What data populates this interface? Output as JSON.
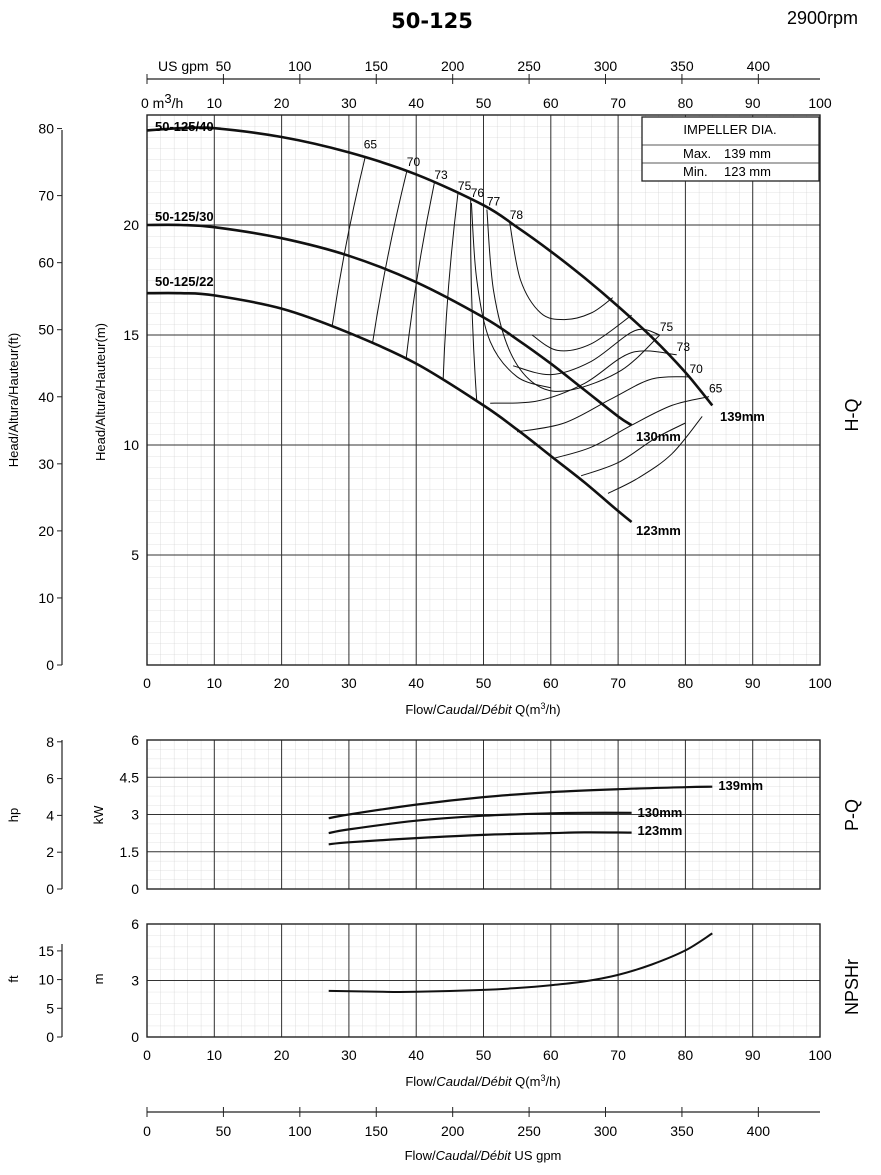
{
  "header": {
    "title": "50-125",
    "speed": "2900rpm"
  },
  "impeller_box": {
    "title": "IMPELLER DIA.",
    "max_label": "Max.",
    "max_value": "139  mm",
    "min_label": "Min.",
    "min_value": "123  mm"
  },
  "axes_text": {
    "us_gpm_top": "US gpm",
    "m3h_top_prefix": "0  m",
    "m3h_top_sup": "3",
    "m3h_top_suffix": "/h",
    "head_ft": "Head/Altura/Hauteur(ft)",
    "head_m": "Head/Altura/Hauteur(m)",
    "hq_side": "H-Q",
    "flow_label_prefix": "Flow/",
    "flow_label_italic": "Caudal/Débit",
    "flow_label_suffix": " Q(m",
    "flow_label_sup": "3",
    "flow_label_end": "/h)",
    "hp": "hp",
    "kw": "kW",
    "pq_side": "P-Q",
    "ft": "ft",
    "m": "m",
    "npsh_side": "NPSHr",
    "flow_gpm_prefix": "Flow/",
    "flow_gpm_italic": "Caudal/Débit",
    "flow_gpm_suffix": "  US gpm"
  },
  "chart_data": [
    {
      "type": "line",
      "name": "H-Q",
      "x_range_m3h": [
        0,
        100
      ],
      "y_range_m": [
        0,
        25
      ],
      "y_range_ft": [
        0,
        82
      ],
      "x_ticks": [
        0,
        10,
        20,
        30,
        40,
        50,
        60,
        70,
        80,
        90,
        100
      ],
      "x_ticks_top": [
        10,
        20,
        30,
        40,
        50,
        60,
        70,
        80,
        90,
        100
      ],
      "gpm_ticks_top": [
        50,
        100,
        150,
        200,
        250,
        300,
        350,
        400
      ],
      "y_ticks_m": [
        5,
        10,
        15,
        20
      ],
      "y_ticks_ft": [
        0,
        10,
        20,
        30,
        40,
        50,
        60,
        70,
        80
      ],
      "grid": true,
      "series": [
        {
          "name": "139mm",
          "model": "50-125/40",
          "x": [
            0,
            5,
            10,
            20,
            30,
            40,
            50,
            55,
            60,
            65,
            70,
            75,
            80,
            84
          ],
          "y": [
            24.3,
            24.4,
            24.4,
            24.0,
            23.3,
            22.3,
            20.9,
            19.9,
            18.8,
            17.6,
            16.3,
            14.9,
            13.3,
            11.8
          ]
        },
        {
          "name": "130mm",
          "model": "50-125/30",
          "x": [
            0,
            5,
            10,
            20,
            30,
            40,
            50,
            55,
            60,
            65,
            70,
            72
          ],
          "y": [
            20.0,
            20.0,
            19.9,
            19.4,
            18.6,
            17.4,
            15.8,
            14.8,
            13.7,
            12.5,
            11.3,
            10.9
          ]
        },
        {
          "name": "123mm",
          "model": "50-125/22",
          "x": [
            0,
            5,
            10,
            20,
            30,
            40,
            50,
            55,
            60,
            65,
            70,
            72
          ],
          "y": [
            16.9,
            16.9,
            16.8,
            16.2,
            15.1,
            13.7,
            11.8,
            10.7,
            9.5,
            8.3,
            7.0,
            6.5
          ]
        }
      ],
      "efficiency_labels": [
        {
          "label": "65",
          "x": 32.2,
          "y": 23.3
        },
        {
          "label": "70",
          "x": 38.6,
          "y": 22.5
        },
        {
          "label": "73",
          "x": 42.7,
          "y": 21.9
        },
        {
          "label": "75",
          "x": 46.2,
          "y": 21.4
        },
        {
          "label": "76",
          "x": 48.1,
          "y": 21.1
        },
        {
          "label": "77",
          "x": 50.5,
          "y": 20.7
        },
        {
          "label": "78",
          "x": 53.9,
          "y": 20.1
        },
        {
          "label": "75",
          "x": 76.2,
          "y": 15.0
        },
        {
          "label": "73",
          "x": 78.7,
          "y": 14.1
        },
        {
          "label": "70",
          "x": 80.6,
          "y": 13.1
        },
        {
          "label": "65",
          "x": 83.5,
          "y": 12.2
        }
      ]
    },
    {
      "type": "line",
      "name": "P-Q",
      "x_range_m3h": [
        0,
        100
      ],
      "y_range_kw": [
        0,
        6
      ],
      "y_ticks_kw": [
        0,
        1.5,
        3,
        4.5,
        6
      ],
      "y_ticks_hp": [
        0,
        2,
        4,
        6,
        8
      ],
      "grid": true,
      "series": [
        {
          "name": "139mm",
          "x": [
            27,
            30,
            40,
            50,
            60,
            70,
            80,
            84
          ],
          "y": [
            2.85,
            3.0,
            3.4,
            3.7,
            3.9,
            4.02,
            4.1,
            4.12
          ]
        },
        {
          "name": "130mm",
          "x": [
            27,
            30,
            40,
            50,
            60,
            65,
            72
          ],
          "y": [
            2.25,
            2.4,
            2.75,
            2.95,
            3.05,
            3.07,
            3.07
          ]
        },
        {
          "name": "123mm",
          "x": [
            27,
            30,
            40,
            50,
            60,
            65,
            72
          ],
          "y": [
            1.8,
            1.88,
            2.05,
            2.18,
            2.25,
            2.28,
            2.27
          ]
        }
      ]
    },
    {
      "type": "line",
      "name": "NPSHr",
      "x_range_m3h": [
        0,
        100
      ],
      "y_range_m": [
        0,
        6
      ],
      "y_ticks_m": [
        0,
        3,
        6
      ],
      "y_ticks_ft": [
        0,
        5,
        10,
        15
      ],
      "grid": true,
      "series": [
        {
          "x": [
            27,
            35,
            40,
            50,
            55,
            60,
            65,
            70,
            75,
            80,
            84
          ],
          "y": [
            2.45,
            2.4,
            2.4,
            2.5,
            2.6,
            2.75,
            2.95,
            3.3,
            3.85,
            4.6,
            5.5
          ]
        }
      ]
    },
    {
      "type": "axis",
      "name": "Flow US gpm",
      "ticks": [
        0,
        50,
        100,
        150,
        200,
        250,
        300,
        350,
        400
      ]
    }
  ]
}
